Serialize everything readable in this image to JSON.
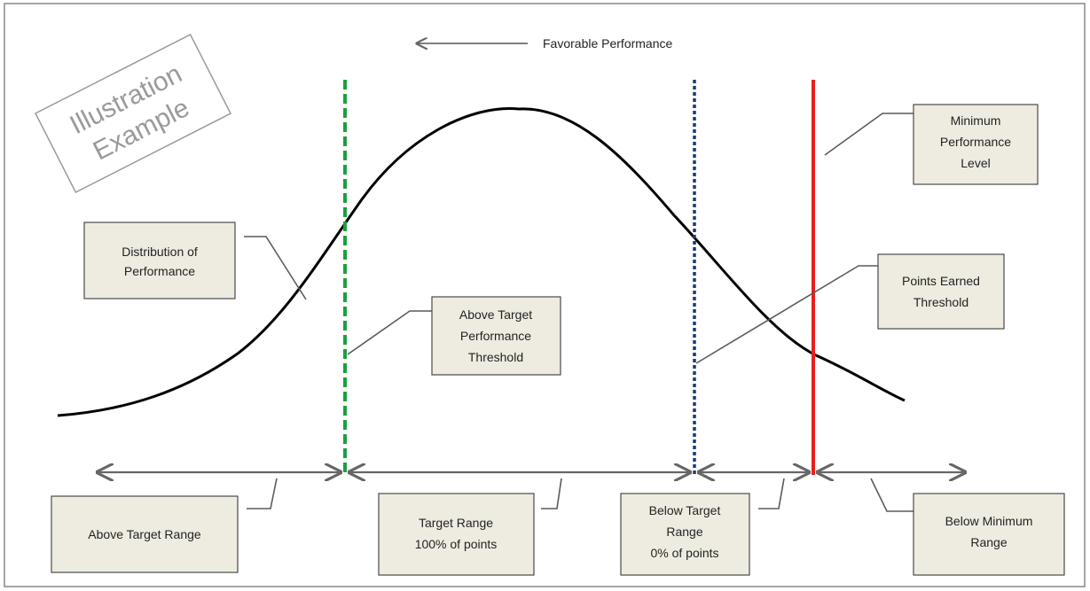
{
  "stamp": {
    "line1": "Illustration",
    "line2": "Example"
  },
  "header": {
    "label": "Favorable Performance"
  },
  "labels": {
    "minimum_performance_level": [
      "Minimum",
      "Performance",
      "Level"
    ],
    "distribution_of_performance": [
      "Distribution of",
      "Performance"
    ],
    "points_earned_threshold": [
      "Points Earned",
      "Threshold"
    ],
    "above_target_performance_threshold": [
      "Above Target",
      "Performance",
      "Threshold"
    ]
  },
  "ranges": {
    "above_target": [
      "Above Target Range"
    ],
    "target": [
      "Target Range",
      "100% of points"
    ],
    "below_target": [
      "Below Target",
      "Range",
      "0% of points"
    ],
    "below_minimum": [
      "Below Minimum",
      "Range"
    ]
  },
  "colors": {
    "curve": "#000000",
    "above_target_threshold_line": "#1aa040",
    "points_earned_threshold_line": "#1c3a78",
    "minimum_performance_line": "#e8201c",
    "box_fill": "#eeece1"
  }
}
